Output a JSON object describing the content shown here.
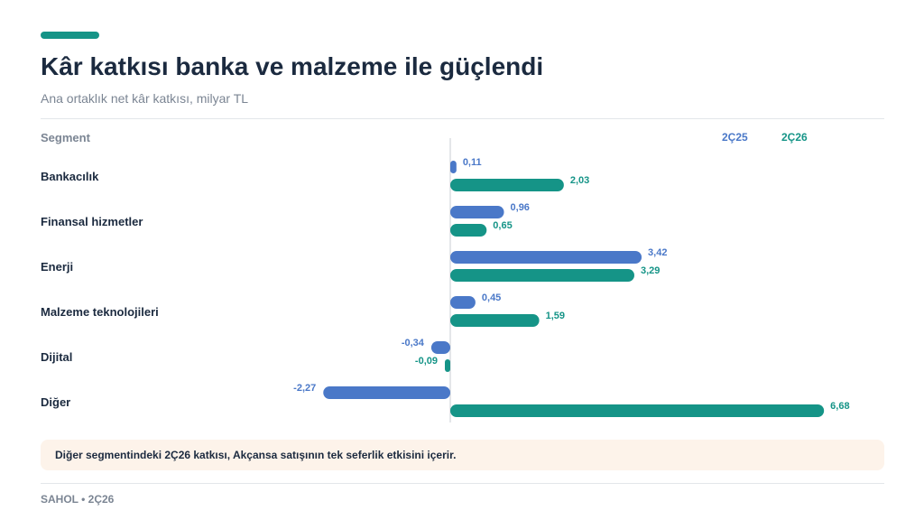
{
  "header": {
    "title": "Kâr katkısı banka ve malzeme ile güçlendi",
    "subtitle": "Ana ortaklık net kâr katkısı, milyar TL"
  },
  "colors": {
    "accent": "#159487",
    "series_2c25": "#4a78c8",
    "series_2c26": "#159487",
    "note_bg": "#fdf3ea"
  },
  "chart_data": {
    "type": "bar",
    "orientation": "horizontal",
    "category_header": "Segment",
    "categories": [
      "Bankacılık",
      "Finansal hizmetler",
      "Enerji",
      "Malzeme teknolojileri",
      "Dijital",
      "Diğer"
    ],
    "series": [
      {
        "name": "2Ç25",
        "values": [
          0.11,
          0.96,
          3.42,
          0.45,
          -0.34,
          -2.27
        ],
        "labels": [
          "0,11",
          "0,96",
          "3,42",
          "0,45",
          "-0,34",
          "-2,27"
        ]
      },
      {
        "name": "2Ç26",
        "values": [
          2.03,
          0.65,
          3.29,
          1.59,
          -0.09,
          6.68
        ],
        "labels": [
          "2,03",
          "0,65",
          "3,29",
          "1,59",
          "-0,09",
          "6,68"
        ]
      }
    ],
    "xlim": [
      -2.27,
      6.68
    ],
    "legend": "top-right",
    "grid": false
  },
  "note": {
    "text": "Diğer segmentindeki 2Ç26 katkısı, Akçansa satışının tek seferlik etkisini içerir."
  },
  "footer": {
    "text": "SAHOL • 2Ç26"
  }
}
